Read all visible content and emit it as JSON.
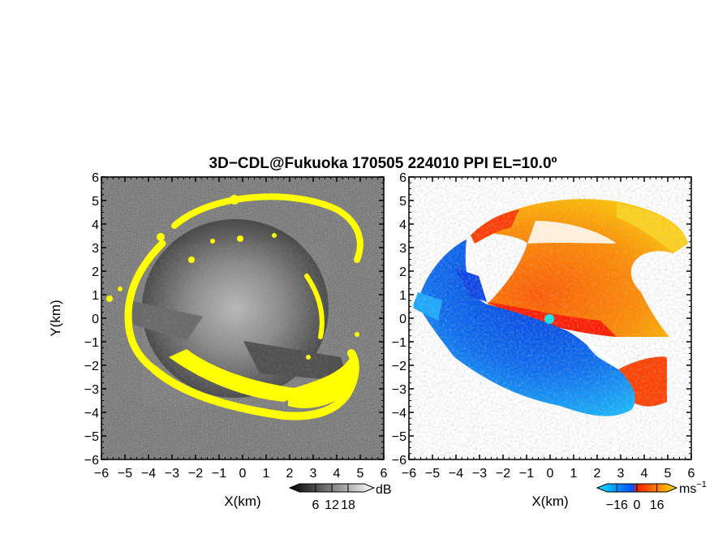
{
  "title": "3D−CDL@Fukuoka 170505 224010 PPI EL=10.0º",
  "chart_data": [
    {
      "type": "heatmap",
      "panel": "reflectivity",
      "xlabel": "X(km)",
      "ylabel": "Y(km)",
      "xlim": [
        -6,
        6
      ],
      "ylim": [
        -6,
        6
      ],
      "xticks": [
        "−6",
        "−5",
        "−4",
        "−3",
        "−2",
        "−1",
        "0",
        "1",
        "2",
        "3",
        "4",
        "5",
        "6"
      ],
      "yticks": [
        "−6",
        "−5",
        "−4",
        "−3",
        "−2",
        "−1",
        "0",
        "1",
        "2",
        "3",
        "4",
        "5",
        "6"
      ],
      "colorbar": {
        "unit": "dB",
        "ticks": [
          "6",
          "12",
          "18"
        ],
        "range": [
          0,
          24
        ],
        "colors": [
          "#000000",
          "#ffffff"
        ],
        "saturation_color": "#ffff00"
      }
    },
    {
      "type": "heatmap",
      "panel": "doppler-velocity",
      "xlabel": "X(km)",
      "xlim": [
        -6,
        6
      ],
      "ylim": [
        -6,
        6
      ],
      "xticks": [
        "−6",
        "−5",
        "−4",
        "−3",
        "−2",
        "−1",
        "0",
        "1",
        "2",
        "3",
        "4",
        "5",
        "6"
      ],
      "yticks": [
        "−6",
        "−5",
        "−4",
        "−3",
        "−2",
        "−1",
        "0",
        "1",
        "2",
        "3",
        "4",
        "5",
        "6"
      ],
      "colorbar": {
        "unit": "ms",
        "unit_exp": "−1",
        "ticks": [
          "−16",
          "0",
          "16"
        ],
        "range": [
          -24,
          24
        ],
        "colors": [
          "#00e5ff",
          "#0050ff",
          "#ff2000",
          "#ffe000"
        ]
      }
    }
  ]
}
